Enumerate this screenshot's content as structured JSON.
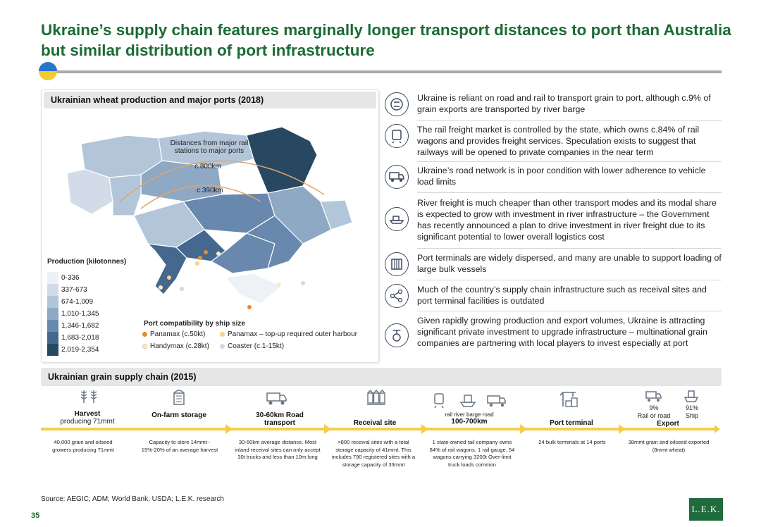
{
  "title": "Ukraine’s supply chain features marginally longer transport distances to port than Australia but similar distribution of port infrastructure",
  "map": {
    "heading": "Ukrainian wheat production and major ports (2018)",
    "distance_label": "Distances from major rail stations to major ports",
    "distance_800": "c.800km",
    "distance_390": "c.390km",
    "legend_title": "Production (kilotonnes)",
    "legend": [
      {
        "label": "0-336",
        "color": "#eef2f7"
      },
      {
        "label": "337-673",
        "color": "#d2dce8"
      },
      {
        "label": "674-1,009",
        "color": "#b3c5d8"
      },
      {
        "label": "1,010-1,345",
        "color": "#8fa9c4"
      },
      {
        "label": "1,346-1,682",
        "color": "#6889ad"
      },
      {
        "label": "1,683-2,018",
        "color": "#44688e"
      },
      {
        "label": "2,019-2,354",
        "color": "#284861"
      }
    ],
    "port_title": "Port compatibility by ship size",
    "ports": [
      {
        "label": "Panamax (c.50kt)",
        "color": "#ef8a2c"
      },
      {
        "label": "Panamax – top-up required outer harbour",
        "color": "#f4d38a"
      },
      {
        "label": "Handymax (c.28kt)",
        "color": "#f9ebd0"
      },
      {
        "label": "Coaster (c.1-15kt)",
        "color": "#d8d8d8"
      }
    ]
  },
  "bullets": [
    {
      "icon": "rail-and-road-icon",
      "text": "Ukraine is reliant on road and rail to transport grain to port, although c.9% of grain exports are transported by river barge"
    },
    {
      "icon": "train-icon",
      "text": "The rail freight market is controlled by the state, which owns c.84% of rail wagons and provides freight services. Speculation exists to suggest that railways will be opened to private companies in the near term"
    },
    {
      "icon": "truck-icon",
      "text": "Ukraine’s road network is in poor condition with lower adherence to vehicle load limits"
    },
    {
      "icon": "barge-icon",
      "text": "River freight is much cheaper than other transport modes and its modal share is expected to grow with investment in river infrastructure – the Government has recently announced a plan to drive investment in river freight due to its significant potential to lower overall logistics cost"
    },
    {
      "icon": "port-gate-icon",
      "text": "Port terminals are widely dispersed, and many are unable to support loading of large bulk vessels"
    },
    {
      "icon": "network-icon",
      "text": "Much of the country’s supply chain infrastructure such as receival sites and port terminal facilities is outdated"
    },
    {
      "icon": "money-plant-icon",
      "text": "Given rapidly growing production and export volumes, Ukraine is attracting significant private investment to upgrade infrastructure – multinational grain companies are partnering with local players to invest especially at port"
    }
  ],
  "chain": {
    "heading": "Ukrainian grain supply chain (2015)",
    "stages": [
      {
        "title": "Harvest",
        "sub": "producing 71mmt",
        "desc": "40,000 grain and oilseed growers producing 71mmt"
      },
      {
        "title": "On-farm storage",
        "sub": "",
        "desc": "Capacity to store 14mmt - 15%-20% of an average harvest"
      },
      {
        "title": "30-60km Road transport",
        "sub": "",
        "desc": "30-60km average distance. Most inland receival sites can only accept 30t trucks and less than 10m long"
      },
      {
        "title": "Receival site",
        "sub": "",
        "desc": ">800 receival sites with a total storage capacity of 41mmt. This includes 790 registered sites with a storage capacity of 33mmt"
      },
      {
        "title": "100-700km",
        "sub": "rail   river barge   road",
        "desc": "1 state-owned rail company owns 84% of rail wagons, 1 rail gauge. 54 wagons carrying 3200t Over-limit truck loads common"
      },
      {
        "title": "Port terminal",
        "sub": "",
        "desc": "24 bulk terminals at 14 ports"
      },
      {
        "title": "Export",
        "sub": "",
        "desc": "38mmt grain and oilseed exported (8mmt wheat)"
      }
    ],
    "export_split": {
      "road_pct": "9%",
      "road_label": "Rail or road",
      "ship_pct": "91%",
      "ship_label": "Ship"
    }
  },
  "source": "Source: AEGIC; ADM; World Bank; USDA; L.E.K. research",
  "page_number": "35",
  "logo": "L.E.K."
}
